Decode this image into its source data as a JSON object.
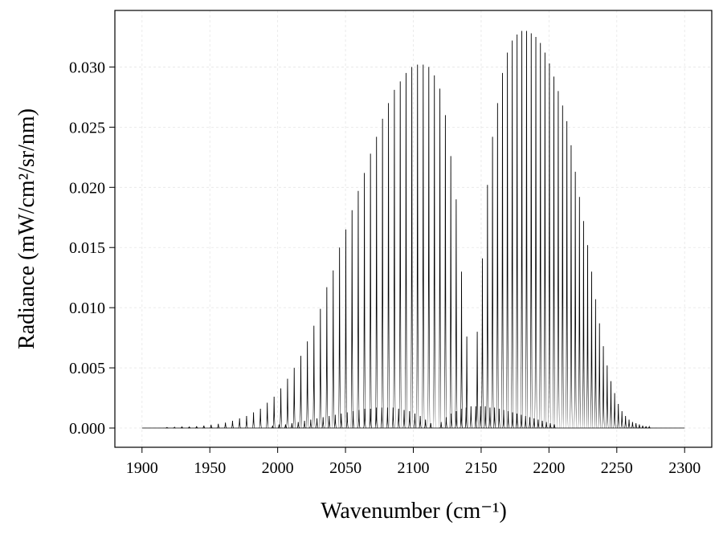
{
  "chart_data": {
    "type": "spectrum",
    "xlabel": "Wavenumber (cm⁻¹)",
    "ylabel": "Radiance (mW/cm²/sr/nm)",
    "xlim": [
      1880,
      2320
    ],
    "ylim": [
      -0.0016,
      0.0347
    ],
    "xticks": [
      1900,
      1950,
      2000,
      2050,
      2100,
      2150,
      2200,
      2250,
      2300
    ],
    "yticks": [
      {
        "value": 0,
        "label": "0.000"
      },
      {
        "value": 0.005,
        "label": "0.005"
      },
      {
        "value": 0.01,
        "label": "0.010"
      },
      {
        "value": 0.015,
        "label": "0.015"
      },
      {
        "value": 0.02,
        "label": "0.020"
      },
      {
        "value": 0.025,
        "label": "0.025"
      },
      {
        "value": 0.03,
        "label": "0.030"
      }
    ],
    "grid": true,
    "series": [
      {
        "color": "#000000",
        "x": [
          2139.44,
          2135.54,
          2131.61,
          2127.64,
          2123.64,
          2119.6,
          2115.53,
          2111.42,
          2107.28,
          2103.1,
          2098.89,
          2094.64,
          2090.36,
          2086.04,
          2081.69,
          2077.3,
          2072.88,
          2068.42,
          2063.93,
          2059.4,
          2054.84,
          2050.24,
          2045.61,
          2040.94,
          2036.24,
          2031.5,
          2026.73,
          2021.92,
          2017.08,
          2012.2,
          2007.29,
          2002.34,
          1997.36,
          1992.34,
          1987.29,
          1982.2,
          1977.08,
          1971.92,
          1966.73,
          1961.5,
          1956.24,
          1950.94,
          1945.61,
          1940.24,
          1934.84,
          1929.4,
          1923.93,
          1918.42
        ],
        "values": [
          0.0076,
          0.013,
          0.019,
          0.0226,
          0.026,
          0.0282,
          0.0293,
          0.03,
          0.0302,
          0.0302,
          0.03,
          0.0295,
          0.0288,
          0.0281,
          0.027,
          0.0257,
          0.0242,
          0.0228,
          0.0212,
          0.0197,
          0.0181,
          0.0165,
          0.015,
          0.0131,
          0.0117,
          0.0099,
          0.0085,
          0.0072,
          0.006,
          0.005,
          0.0041,
          0.0033,
          0.0026,
          0.0021,
          0.0016,
          0.0013,
          0.001,
          0.0008,
          0.0006,
          0.00045,
          0.00035,
          0.00027,
          0.0002,
          0.00015,
          0.00011,
          8e-05,
          6e-05,
          4e-05
        ]
      },
      {
        "color": "#000000",
        "x": [
          2147.13,
          2150.92,
          2154.68,
          2158.4,
          2162.09,
          2165.74,
          2169.36,
          2172.94,
          2176.49,
          2180.0,
          2183.48,
          2186.92,
          2190.33,
          2193.7,
          2197.04,
          2200.34,
          2203.61,
          2206.84,
          2210.04,
          2213.2,
          2216.33,
          2219.42,
          2222.48,
          2225.5,
          2228.49,
          2231.44,
          2234.36,
          2237.24,
          2240.09,
          2242.9,
          2245.68,
          2248.42,
          2251.13,
          2253.8,
          2256.44,
          2259.04,
          2261.61,
          2264.14,
          2266.64,
          2269.1,
          2271.53,
          2273.92
        ],
        "values": [
          0.008,
          0.0141,
          0.0202,
          0.0242,
          0.027,
          0.0295,
          0.0312,
          0.0322,
          0.0327,
          0.033,
          0.033,
          0.0328,
          0.0325,
          0.032,
          0.0312,
          0.0303,
          0.0292,
          0.028,
          0.0268,
          0.0255,
          0.0235,
          0.0213,
          0.0192,
          0.0172,
          0.0152,
          0.013,
          0.0107,
          0.0087,
          0.0068,
          0.0052,
          0.0039,
          0.0029,
          0.002,
          0.0014,
          0.001,
          0.0007,
          0.0005,
          0.0004,
          0.0003,
          0.0002,
          0.00015,
          0.0001
        ]
      },
      {
        "color": "#000000",
        "x": [
          2112.87,
          2109.01,
          2105.11,
          2101.18,
          2097.21,
          2093.21,
          2089.17,
          2085.1,
          2080.99,
          2076.85,
          2072.67,
          2068.46,
          2064.21,
          2059.93,
          2055.61,
          2051.26,
          2046.87,
          2042.45,
          2037.99,
          2033.5,
          2028.97,
          2024.41,
          2019.81,
          2015.18,
          2010.51,
          2005.81,
          2001.07,
          1996.3,
          2120.49,
          2124.25,
          2127.97,
          2131.66,
          2135.31,
          2138.93,
          2142.51,
          2146.06,
          2149.57,
          2153.05,
          2156.49,
          2159.9,
          2163.27,
          2166.61,
          2169.91,
          2173.18,
          2176.41,
          2179.61,
          2182.77,
          2185.9,
          2188.99,
          2192.05,
          2195.07,
          2198.06,
          2201.01,
          2203.93
        ],
        "values": [
          0.0004,
          0.0007,
          0.001,
          0.0012,
          0.0014,
          0.0015,
          0.0016,
          0.0017,
          0.0017,
          0.0017,
          0.0017,
          0.0016,
          0.0016,
          0.0015,
          0.0014,
          0.0013,
          0.0012,
          0.0011,
          0.001,
          0.0009,
          0.0008,
          0.0007,
          0.0006,
          0.0005,
          0.0004,
          0.0003,
          0.0003,
          0.0002,
          0.0005,
          0.0009,
          0.0012,
          0.0014,
          0.0016,
          0.0017,
          0.0018,
          0.0018,
          0.0018,
          0.0018,
          0.0017,
          0.0017,
          0.0016,
          0.0015,
          0.0014,
          0.0013,
          0.0012,
          0.0011,
          0.001,
          0.0009,
          0.0008,
          0.0007,
          0.0006,
          0.0005,
          0.0004,
          0.0003
        ]
      }
    ]
  }
}
